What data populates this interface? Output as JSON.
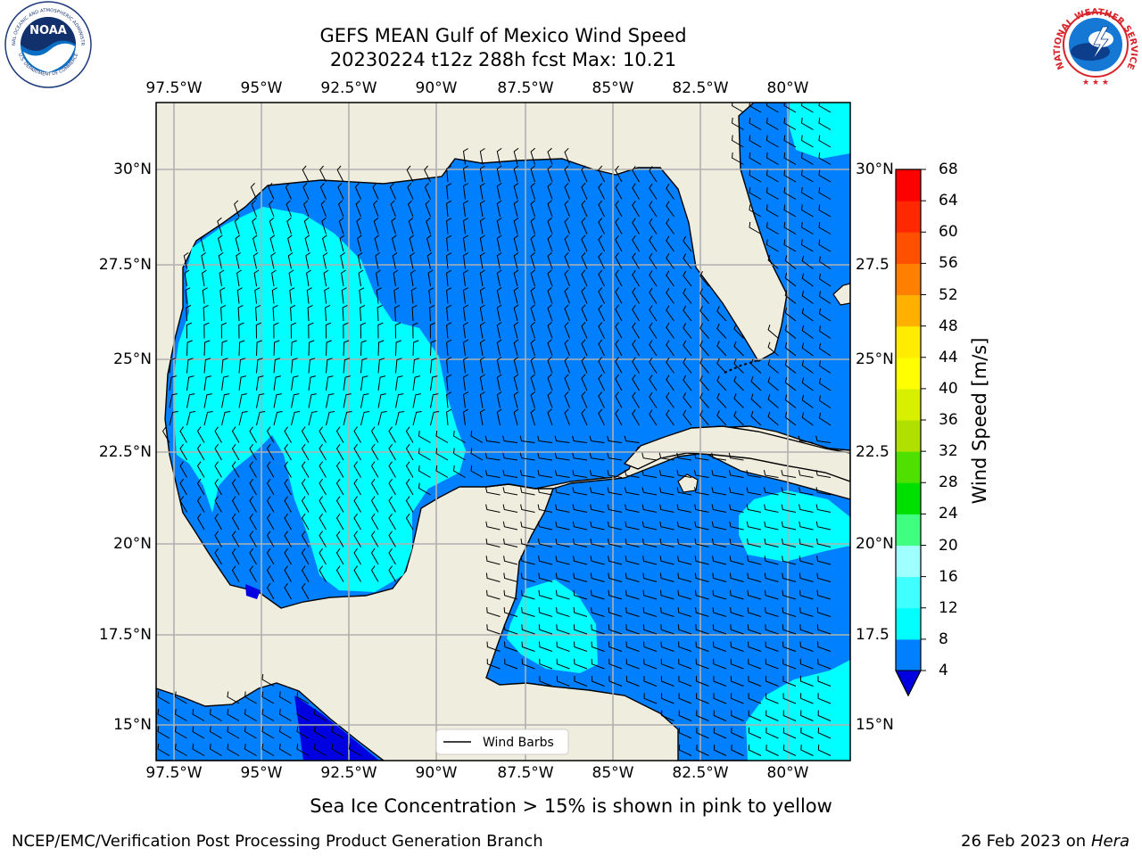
{
  "title": {
    "line1": "GEFS MEAN Gulf of Mexico Wind Speed",
    "line2": "20230224 t12z 288h fcst   Max: 10.21"
  },
  "logos": {
    "left": {
      "name": "noaa-logo",
      "text": "NOAA",
      "ring_top": "NATIONAL OCEANIC AND ATMOSPHERIC ADMINISTRATION",
      "ring_bottom": "U.S. DEPARTMENT OF COMMERCE"
    },
    "right": {
      "name": "nws-logo",
      "ring": "NATIONAL WEATHER SERVICE"
    }
  },
  "map": {
    "lon_ticks": [
      "97.5°W",
      "95°W",
      "92.5°W",
      "90°W",
      "87.5°W",
      "85°W",
      "82.5°W",
      "80°W"
    ],
    "lat_ticks_left": [
      "30°N",
      "27.5°N",
      "25°N",
      "22.5°N",
      "20°N",
      "17.5°N",
      "15°N"
    ],
    "lat_ticks_right": [
      "30°N",
      "27.5",
      "25°N",
      "22.5",
      "20°N",
      "17.5",
      "15°N"
    ],
    "legend_label": "Wind Barbs",
    "colors": {
      "land": "#efedde",
      "speed_4_8": "#0080ff",
      "speed_8_12": "#00ffff",
      "speed_below_4": "#0000e0",
      "grid": "#b0b0b0"
    }
  },
  "colorbar": {
    "label": "Wind Speed [m/s]",
    "ticks": [
      "68",
      "64",
      "60",
      "56",
      "52",
      "48",
      "44",
      "40",
      "36",
      "32",
      "28",
      "24",
      "20",
      "16",
      "12",
      "8",
      "4"
    ],
    "bands": [
      "#0080ff",
      "#00ffff",
      "#40ffff",
      "#a0ffff",
      "#40ff80",
      "#00e000",
      "#50e000",
      "#b0e000",
      "#d8f000",
      "#ffff00",
      "#ffec00",
      "#ffb000",
      "#ff8000",
      "#ff5000",
      "#ff2800",
      "#ff0000"
    ],
    "under_color": "#0000e0"
  },
  "footer": {
    "caption": "Sea Ice Concentration > 15% is shown in pink to yellow",
    "left": "NCEP/EMC/Verification Post Processing Product Generation Branch",
    "right_date": "26 Feb 2023 on",
    "right_machine": "Hera"
  }
}
